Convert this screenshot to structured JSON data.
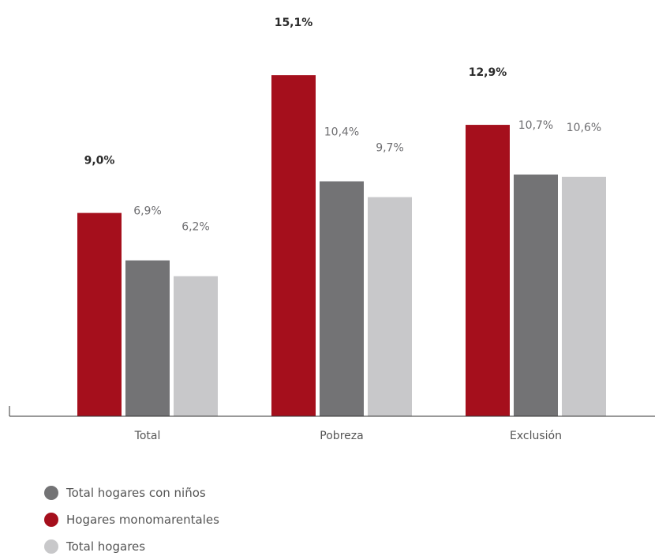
{
  "chart_data": {
    "type": "bar",
    "categories": [
      "Total",
      "Pobreza",
      "Exclusión"
    ],
    "series": [
      {
        "name": "Hogares monomarentales",
        "values": [
          9.0,
          15.1,
          12.9
        ],
        "labels": [
          "9,0%",
          "15,1%",
          "12,9%"
        ],
        "color": "#a50f1c",
        "bold": true
      },
      {
        "name": "Total hogares con niños",
        "values": [
          6.9,
          10.4,
          10.7
        ],
        "labels": [
          "6,9%",
          "10,4%",
          "10,7%"
        ],
        "color": "#737375",
        "bold": false
      },
      {
        "name": "Total hogares",
        "values": [
          6.2,
          9.7,
          10.6
        ],
        "labels": [
          "6,2%",
          "9,7%",
          "10,6%"
        ],
        "color": "#c8c8ca",
        "bold": false
      }
    ],
    "legend": [
      {
        "label": "Total hogares con niños",
        "color": "#737375"
      },
      {
        "label": "Hogares monomarentales",
        "color": "#a50f1c"
      },
      {
        "label": "Total hogares",
        "color": "#c8c8ca"
      }
    ],
    "legend_position": "bottom-left",
    "grid": false,
    "ylim": [
      0,
      17
    ]
  }
}
